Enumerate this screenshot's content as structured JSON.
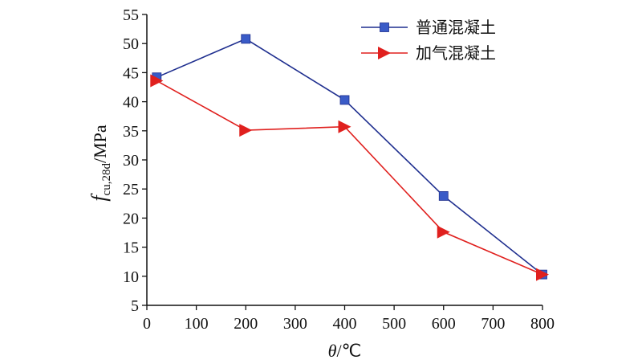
{
  "chart_data": {
    "type": "line",
    "xlabel": {
      "var": "θ",
      "unit": "/℃"
    },
    "ylabel": {
      "var": "f",
      "sub": "cu,28d",
      "unit": "/MPa"
    },
    "xlim": [
      0,
      800
    ],
    "ylim": [
      5,
      55
    ],
    "xticks": [
      0,
      100,
      200,
      300,
      400,
      500,
      600,
      700,
      800
    ],
    "yticks": [
      5,
      10,
      15,
      20,
      25,
      30,
      35,
      40,
      45,
      50,
      55
    ],
    "grid": false,
    "legend_position": "top-right",
    "series": [
      {
        "name": "普通混凝土",
        "marker": "square",
        "color": "#1f2f8f",
        "marker_color": "#3a5bc7",
        "x": [
          20,
          200,
          400,
          600,
          800
        ],
        "y": [
          44.2,
          50.8,
          40.3,
          23.8,
          10.3
        ]
      },
      {
        "name": "加气混凝土",
        "marker": "triangle-right",
        "color": "#e0201e",
        "marker_color": "#e0201e",
        "x": [
          20,
          200,
          400,
          600,
          800
        ],
        "y": [
          43.6,
          35.1,
          35.7,
          17.6,
          10.3
        ]
      }
    ]
  }
}
